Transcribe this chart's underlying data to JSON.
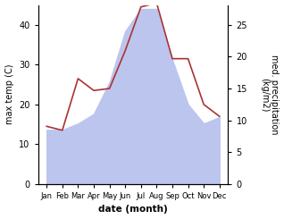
{
  "months": [
    "Jan",
    "Feb",
    "Mar",
    "Apr",
    "May",
    "Jun",
    "Jul",
    "Aug",
    "Sep",
    "Oct",
    "Nov",
    "Dec"
  ],
  "month_positions": [
    0,
    1,
    2,
    3,
    4,
    5,
    6,
    7,
    8,
    9,
    10,
    11
  ],
  "temp": [
    14.5,
    13.5,
    26.5,
    23.5,
    24.0,
    33.5,
    44.5,
    45.5,
    31.5,
    31.5,
    20.0,
    17.0
  ],
  "precip": [
    8.5,
    8.5,
    9.5,
    11.0,
    16.0,
    24.0,
    27.5,
    27.5,
    19.5,
    12.5,
    9.5,
    10.5
  ],
  "temp_color": "#aa3333",
  "precip_fill_color": "#bcc5ee",
  "left_ylabel": "max temp (C)",
  "right_ylabel": "med. precipitation\n(kg/m2)",
  "xlabel": "date (month)",
  "left_ylim": [
    0,
    45
  ],
  "right_ylim": [
    0,
    28.125
  ],
  "left_yticks": [
    0,
    10,
    20,
    30,
    40
  ],
  "right_yticks": [
    0,
    5,
    10,
    15,
    20,
    25
  ],
  "background_color": "#ffffff"
}
